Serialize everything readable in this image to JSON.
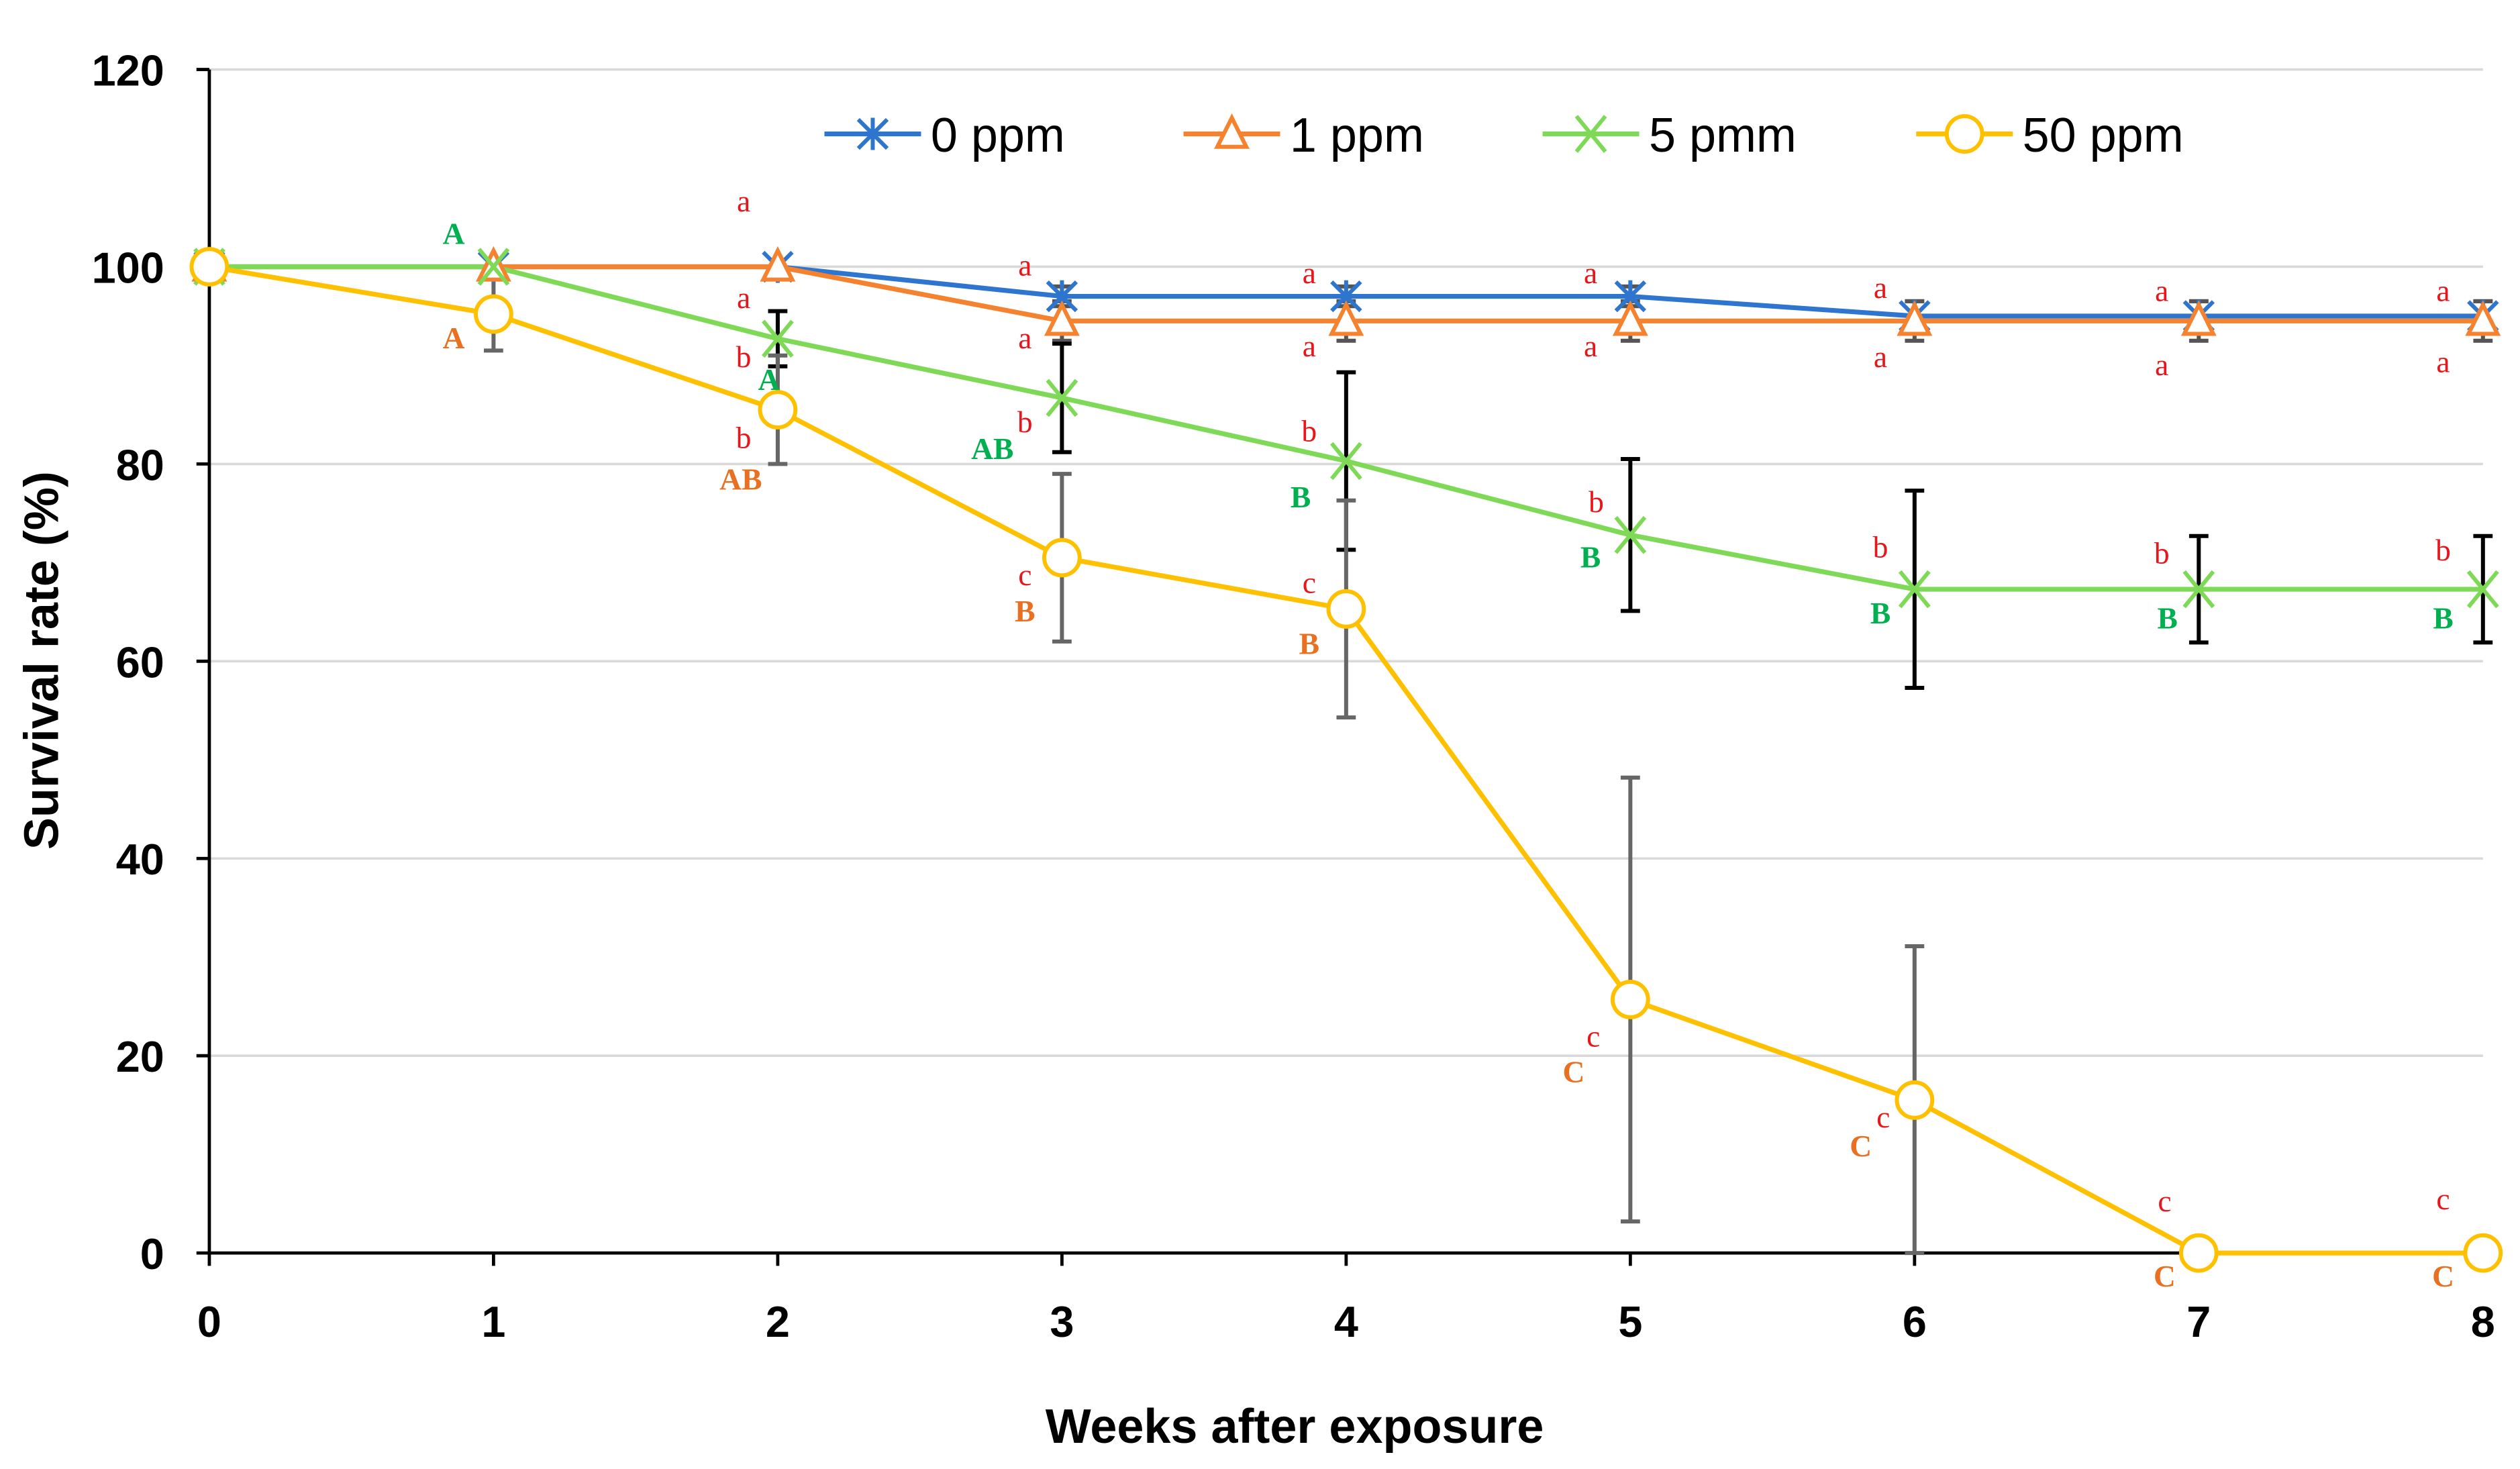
{
  "chart_data": {
    "type": "line",
    "title": "",
    "xlabel": "Weeks after exposure",
    "ylabel": "Survival rate (%)",
    "xlim": [
      0,
      8
    ],
    "ylim": [
      0,
      120
    ],
    "x": [
      0,
      1,
      2,
      3,
      4,
      5,
      6,
      7,
      8
    ],
    "xticks": [
      "0",
      "1",
      "2",
      "3",
      "4",
      "5",
      "6",
      "7",
      "8"
    ],
    "yticks": [
      "0",
      "20",
      "40",
      "60",
      "80",
      "100",
      "120"
    ],
    "grid": "horizontal",
    "legend_position": "top-right",
    "series": [
      {
        "name": "0 ppm",
        "color": "#2E75CF",
        "marker": "asterisk",
        "values": [
          100,
          100,
          100,
          97,
          97,
          97,
          95,
          95,
          95
        ],
        "errors": [
          0,
          0,
          0,
          1,
          1,
          1,
          1.5,
          1.5,
          1.5
        ],
        "error_color": "#555555"
      },
      {
        "name": "1 ppm",
        "color": "#F5822E",
        "marker": "triangle",
        "values": [
          100,
          100,
          100,
          94.5,
          94.5,
          94.5,
          94.5,
          94.5,
          94.5
        ],
        "errors": [
          0,
          0,
          0,
          2,
          2,
          2,
          2,
          2,
          2
        ],
        "error_color": "#555555"
      },
      {
        "name": "5 pmm",
        "color": "#7ED957",
        "marker": "x",
        "values": [
          100,
          100,
          92.7,
          86.7,
          80.3,
          72.8,
          67.3,
          67.3,
          67.3
        ],
        "errors": [
          0,
          0,
          2.8,
          5.5,
          9,
          7.7,
          10,
          5.4,
          5.4
        ],
        "error_color": "#000000"
      },
      {
        "name": "50 ppm",
        "color": "#FFC000",
        "marker": "circle",
        "values": [
          100,
          95.2,
          85.5,
          70.5,
          65.3,
          25.7,
          15.5,
          0,
          0
        ],
        "errors": [
          0,
          3.7,
          5.5,
          8.5,
          11,
          22.5,
          15.6,
          0,
          0
        ],
        "error_color": "#666666"
      }
    ],
    "annotations": [
      {
        "x": 0.86,
        "y": 103.3,
        "text": "A",
        "color": "#00B050"
      },
      {
        "x": 0.86,
        "y": 92.7,
        "text": "A",
        "color": "#E87020"
      },
      {
        "x": 1.88,
        "y": 106.6,
        "text": "a",
        "color": "#E8161B"
      },
      {
        "x": 1.88,
        "y": 96.8,
        "text": "a",
        "color": "#E8161B"
      },
      {
        "x": 1.88,
        "y": 90.8,
        "text": "b",
        "color": "#E8161B"
      },
      {
        "x": 1.89,
        "y": 88.5,
        "text": "A",
        "color": "#00B050"
      },
      {
        "x": 1.88,
        "y": 82.6,
        "text": "b",
        "color": "#E8161B"
      },
      {
        "x": 1.87,
        "y": 78.4,
        "text": "AB",
        "color": "#E87020"
      },
      {
        "x": 2.87,
        "y": 100.1,
        "text": "a",
        "color": "#E8161B"
      },
      {
        "x": 2.87,
        "y": 92.7,
        "text": "a",
        "color": "#E8161B"
      },
      {
        "x": 2.87,
        "y": 84.2,
        "text": "b",
        "color": "#E8161B"
      },
      {
        "x": 2.88,
        "y": 81.5,
        "text": "AB",
        "color": "#00B050"
      },
      {
        "x": 2.87,
        "y": 68.7,
        "text": "c",
        "color": "#E8161B"
      },
      {
        "x": 2.87,
        "y": 65,
        "text": "B",
        "color": "#E87020"
      },
      {
        "x": 3.87,
        "y": 99.3,
        "text": "a",
        "color": "#E8161B"
      },
      {
        "x": 3.87,
        "y": 91.9,
        "text": "a",
        "color": "#E8161B"
      },
      {
        "x": 3.87,
        "y": 83.3,
        "text": "b",
        "color": "#E8161B"
      },
      {
        "x": 3.84,
        "y": 76.6,
        "text": "B",
        "color": "#00B050"
      },
      {
        "x": 3.87,
        "y": 67.9,
        "text": "c",
        "color": "#E8161B"
      },
      {
        "x": 3.87,
        "y": 61.7,
        "text": "B",
        "color": "#E87020"
      },
      {
        "x": 4.86,
        "y": 99.3,
        "text": "a",
        "color": "#E8161B"
      },
      {
        "x": 4.86,
        "y": 91.9,
        "text": "a",
        "color": "#E8161B"
      },
      {
        "x": 4.88,
        "y": 76.1,
        "text": "b",
        "color": "#E8161B"
      },
      {
        "x": 4.86,
        "y": 70.5,
        "text": "B",
        "color": "#00B050"
      },
      {
        "x": 4.87,
        "y": 21.9,
        "text": "c",
        "color": "#E8161B"
      },
      {
        "x": 4.88,
        "y": 18.3,
        "text": "C",
        "color": "#E87020"
      },
      {
        "x": 5.88,
        "y": 97.8,
        "text": "a",
        "color": "#E8161B"
      },
      {
        "x": 5.88,
        "y": 90.8,
        "text": "a",
        "color": "#E8161B"
      },
      {
        "x": 5.88,
        "y": 71.5,
        "text": "b",
        "color": "#E8161B"
      },
      {
        "x": 5.88,
        "y": 64.8,
        "text": "B",
        "color": "#00B050"
      },
      {
        "x": 5.89,
        "y": 13.7,
        "text": "c",
        "color": "#E8161B"
      },
      {
        "x": 5.89,
        "y": 10.8,
        "text": "C",
        "color": "#E87020"
      },
      {
        "x": 6.87,
        "y": 97.5,
        "text": "a",
        "color": "#E8161B"
      },
      {
        "x": 6.87,
        "y": 90,
        "text": "a",
        "color": "#E8161B"
      },
      {
        "x": 6.87,
        "y": 70.9,
        "text": "b",
        "color": "#E8161B"
      },
      {
        "x": 6.89,
        "y": 64.3,
        "text": "B",
        "color": "#00B050"
      },
      {
        "x": 6.88,
        "y": 5.2,
        "text": "c",
        "color": "#E8161B"
      },
      {
        "x": 6.88,
        "y": -2.4,
        "text": "C",
        "color": "#E87020"
      },
      {
        "x": 7.86,
        "y": 97.5,
        "text": "a",
        "color": "#E8161B"
      },
      {
        "x": 7.86,
        "y": 90.3,
        "text": "a",
        "color": "#E8161B"
      },
      {
        "x": 7.86,
        "y": 71.2,
        "text": "b",
        "color": "#E8161B"
      },
      {
        "x": 7.86,
        "y": 64.3,
        "text": "B",
        "color": "#00B050"
      },
      {
        "x": 7.86,
        "y": 5.4,
        "text": "c",
        "color": "#E8161B"
      },
      {
        "x": 7.86,
        "y": -2.4,
        "text": "C",
        "color": "#E87020"
      }
    ]
  }
}
